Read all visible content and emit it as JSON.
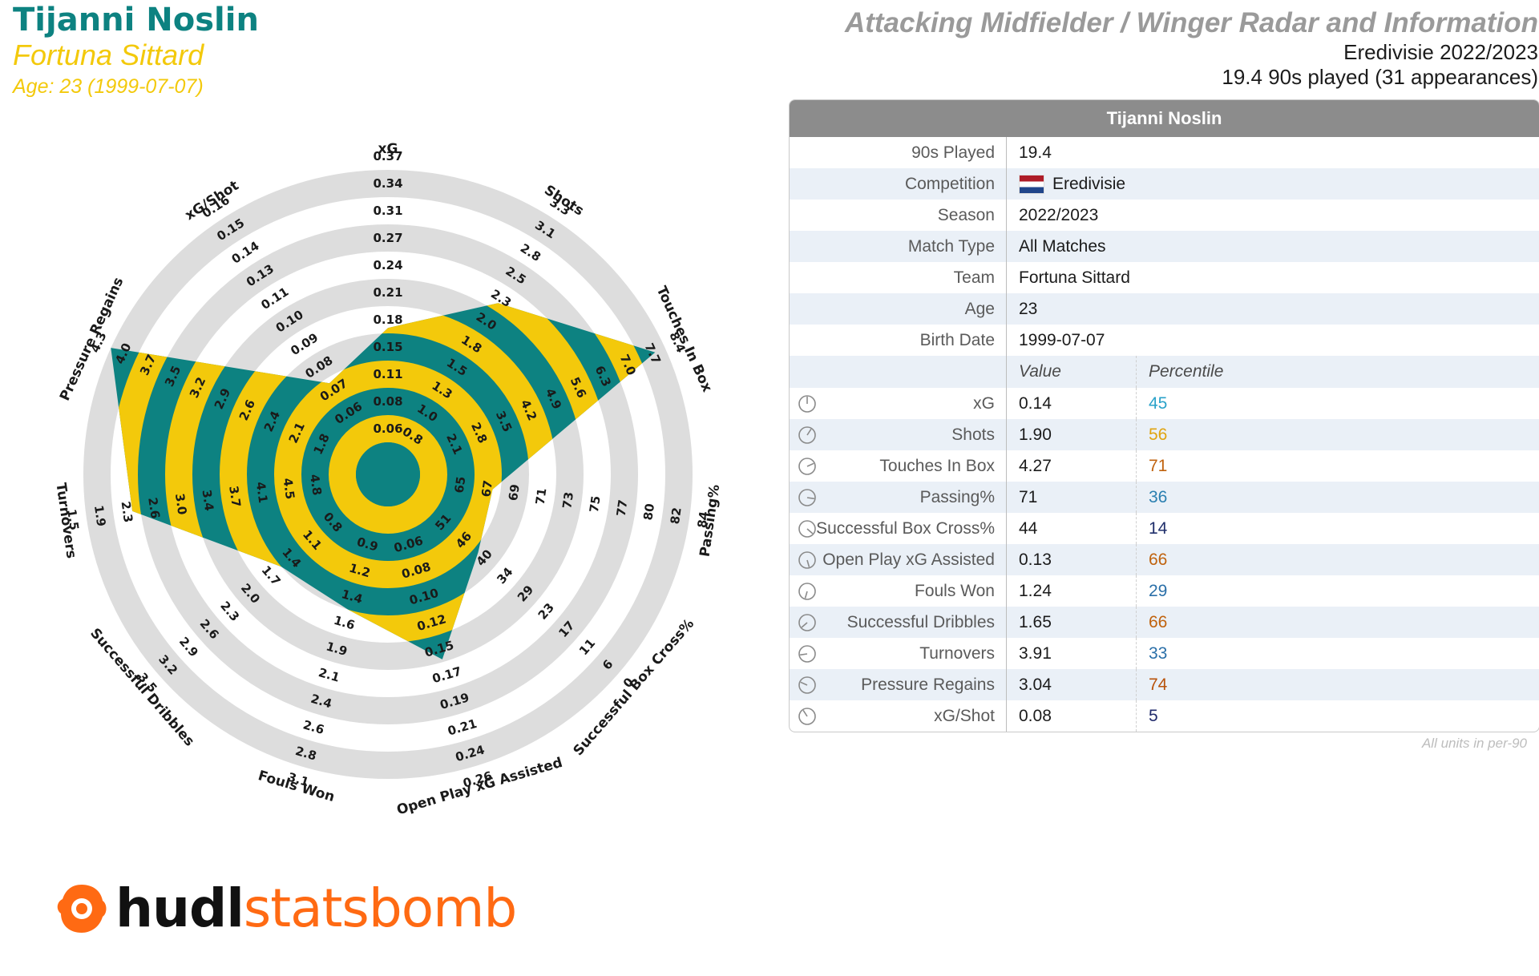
{
  "header": {
    "player_name": "Tijanni Noslin",
    "team": "Fortuna Sittard",
    "age_line": "Age: 23 (1999-07-07)",
    "chart_title": "Attacking Midfielder / Winger Radar and Information",
    "league_season": "Eredivisie 2022/2023",
    "minutes_line": "19.4 90s played (31 appearances)"
  },
  "info_table": {
    "title": "Tijanni Noslin",
    "rows": [
      {
        "label": "90s Played",
        "value": "19.4"
      },
      {
        "label": "Competition",
        "value": "Eredivisie"
      },
      {
        "label": "Season",
        "value": "2022/2023"
      },
      {
        "label": "Match Type",
        "value": "All Matches"
      },
      {
        "label": "Team",
        "value": "Fortuna Sittard"
      },
      {
        "label": "Age",
        "value": "23"
      },
      {
        "label": "Birth Date",
        "value": "1999-07-07"
      }
    ],
    "value_header": "Value",
    "percentile_header": "Percentile",
    "footnote": "All units in per-90"
  },
  "logo": {
    "word1": "hudl",
    "word2": "statsbomb"
  },
  "colors": {
    "teal": "#0d8281",
    "yellow": "#f3c90b",
    "ring": "#dddddd",
    "header_gray": "#8c8c8c",
    "logo_orange": "#ff6a13",
    "percentile_colors": [
      "#2aa2c9",
      "#e0a30f",
      "#c0620d",
      "#2a7fb0",
      "#1f2f6b",
      "#c0620d",
      "#2a6fa8",
      "#c0620d",
      "#2a6fa8",
      "#b8520a",
      "#1f2a6b"
    ]
  },
  "chart_data": {
    "type": "radar",
    "metrics": [
      {
        "name": "xG",
        "value": "0.14",
        "percentile": "45",
        "ticks": [
          "0.06",
          "0.08",
          "0.11",
          "0.15",
          "0.18",
          "0.21",
          "0.24",
          "0.27",
          "0.31",
          "0.34",
          "0.37"
        ]
      },
      {
        "name": "Shots",
        "value": "1.90",
        "percentile": "56",
        "ticks": [
          "0.8",
          "1.0",
          "1.3",
          "1.5",
          "1.8",
          "2.0",
          "2.3",
          "2.5",
          "2.8",
          "3.1",
          "3.3"
        ]
      },
      {
        "name": "Touches In Box",
        "value": "4.27",
        "percentile": "71",
        "ticks": [
          "2.1",
          "2.8",
          "3.5",
          "4.2",
          "4.9",
          "5.6",
          "6.3",
          "7.0",
          "7.7",
          "8.4"
        ]
      },
      {
        "name": "Passing%",
        "value": "71",
        "percentile": "36",
        "ticks": [
          "65",
          "67",
          "69",
          "71",
          "73",
          "75",
          "77",
          "80",
          "82",
          "84"
        ]
      },
      {
        "name": "Successful Box Cross%",
        "value": "44",
        "percentile": "14",
        "ticks": [
          "51",
          "46",
          "40",
          "34",
          "29",
          "23",
          "17",
          "11",
          "6",
          "0"
        ]
      },
      {
        "name": "Open Play xG Assisted",
        "value": "0.13",
        "percentile": "66",
        "ticks": [
          "0.06",
          "0.08",
          "0.10",
          "0.12",
          "0.15",
          "0.17",
          "0.19",
          "0.21",
          "0.24",
          "0.26"
        ]
      },
      {
        "name": "Fouls Won",
        "value": "1.24",
        "percentile": "29",
        "ticks": [
          "0.9",
          "1.2",
          "1.4",
          "1.6",
          "1.9",
          "2.1",
          "2.4",
          "2.6",
          "2.8",
          "3.1"
        ]
      },
      {
        "name": "Successful Dribbles",
        "value": "1.65",
        "percentile": "66",
        "ticks": [
          "0.8",
          "1.1",
          "1.4",
          "1.7",
          "2.0",
          "2.3",
          "2.6",
          "2.9",
          "3.2",
          "3.5"
        ]
      },
      {
        "name": "Turnovers",
        "value": "3.91",
        "percentile": "33",
        "ticks": [
          "4.8",
          "4.5",
          "4.1",
          "3.7",
          "3.4",
          "3.0",
          "2.6",
          "2.3",
          "1.9",
          "1.5"
        ]
      },
      {
        "name": "Pressure Regains",
        "value": "3.04",
        "percentile": "74",
        "ticks": [
          "1.8",
          "2.1",
          "2.4",
          "2.6",
          "2.9",
          "3.2",
          "3.5",
          "3.7",
          "4.0",
          "4.3"
        ]
      },
      {
        "name": "xG/Shot",
        "value": "0.08",
        "percentile": "5",
        "ticks": [
          "0.06",
          "0.07",
          "0.08",
          "0.09",
          "0.10",
          "0.11",
          "0.13",
          "0.14",
          "0.15",
          "0.16"
        ]
      }
    ],
    "plotted_levels": [
      0.42,
      0.63,
      0.96,
      0.27,
      0.32,
      0.59,
      0.4,
      0.4,
      0.83,
      1.0,
      0.28
    ]
  }
}
